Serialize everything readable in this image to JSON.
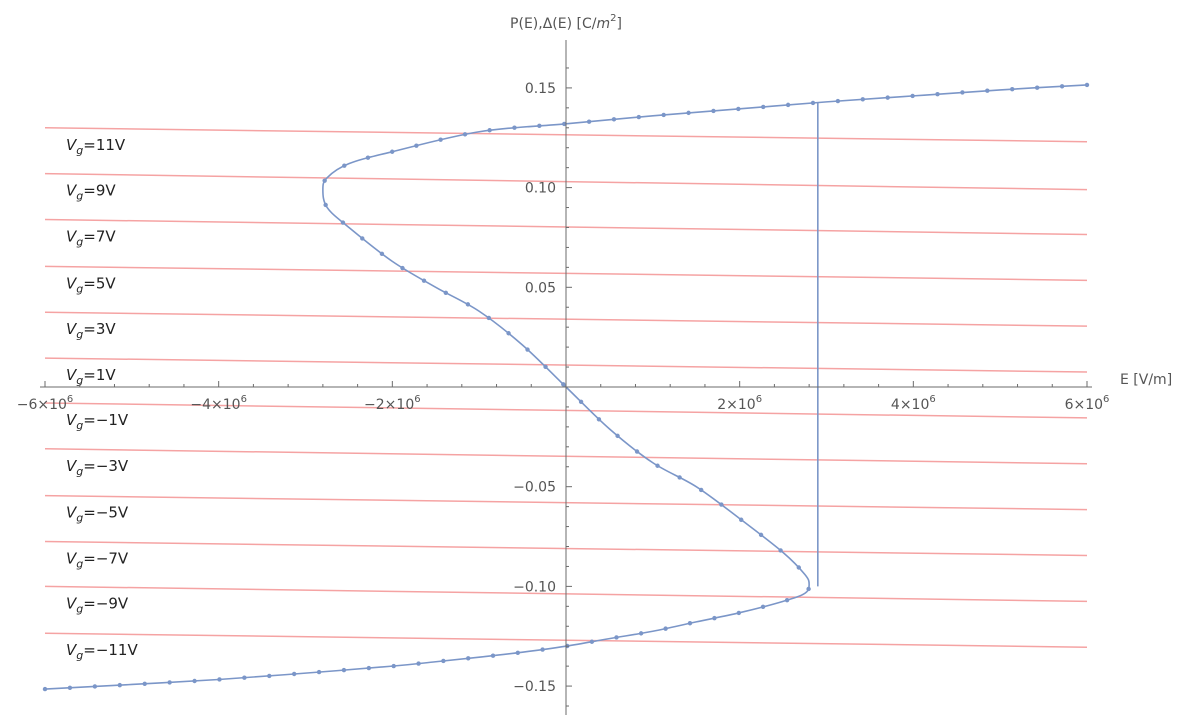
{
  "chart_data": {
    "type": "line",
    "title": "",
    "xlabel": "E [V/m]",
    "ylabel_parts": [
      "P(E),Δ(E) [C/",
      "m",
      "2",
      "]"
    ],
    "xlim": [
      -6000000,
      6000000
    ],
    "ylim": [
      -0.163,
      0.165
    ],
    "x_ticks": [
      {
        "value": -6000000,
        "mant": "−6×10",
        "exp": "6"
      },
      {
        "value": -4000000,
        "mant": "−4×10",
        "exp": "6"
      },
      {
        "value": -2000000,
        "mant": "−2×10",
        "exp": "6"
      },
      {
        "value": 2000000,
        "mant": "2×10",
        "exp": "6"
      },
      {
        "value": 4000000,
        "mant": "4×10",
        "exp": "6"
      },
      {
        "value": 6000000,
        "mant": "6×10",
        "exp": "6"
      }
    ],
    "y_ticks": [
      {
        "value": 0.15,
        "label": "0.15"
      },
      {
        "value": 0.1,
        "label": "0.10"
      },
      {
        "value": 0.05,
        "label": "0.05"
      },
      {
        "value": -0.05,
        "label": "−0.05"
      },
      {
        "value": -0.1,
        "label": "−0.10"
      },
      {
        "value": -0.15,
        "label": "−0.15"
      }
    ],
    "curve_color": "#7b96c8",
    "line_color": "#f5a3a3",
    "s_curve": {
      "x": [
        -6000000,
        -5000000,
        -4000000,
        -3000000,
        -2000000,
        -1500000,
        -1000000,
        -500000,
        0,
        500000,
        1000000,
        1500000,
        2000000,
        2500000,
        2750000,
        2800000,
        2750000,
        2500000,
        2000000,
        1500000,
        1000000,
        500000,
        0,
        -500000,
        -1000000,
        -1500000,
        -2000000,
        -2500000,
        -2750000,
        -2800000,
        -2750000,
        -2500000,
        -2000000,
        -1000000,
        0,
        1000000,
        2000000,
        3000000,
        4000000,
        5000000,
        6000000
      ],
      "y": [
        -0.1515,
        -0.1492,
        -0.1467,
        -0.1435,
        -0.14,
        -0.1378,
        -0.1355,
        -0.133,
        -0.13,
        -0.1262,
        -0.1225,
        -0.1178,
        -0.1132,
        -0.1075,
        -0.1035,
        -0.099,
        -0.094,
        -0.083,
        -0.066,
        -0.05,
        -0.038,
        -0.021,
        0.0,
        0.021,
        0.038,
        0.05,
        0.063,
        0.08,
        0.09,
        0.099,
        0.105,
        0.112,
        0.118,
        0.128,
        0.132,
        0.136,
        0.1395,
        0.143,
        0.146,
        0.149,
        0.1515
      ]
    },
    "vertical_segment": {
      "x": 2900000,
      "y": [
        -0.1,
        0.1425
      ]
    },
    "gate_lines": [
      {
        "label_pre": "V",
        "label_sub": "g",
        "label_post": "=11V",
        "y_left": 0.13,
        "y_right": 0.123
      },
      {
        "label_pre": "V",
        "label_sub": "g",
        "label_post": "=9V",
        "y_left": 0.107,
        "y_right": 0.099
      },
      {
        "label_pre": "V",
        "label_sub": "g",
        "label_post": "=7V",
        "y_left": 0.084,
        "y_right": 0.0765
      },
      {
        "label_pre": "V",
        "label_sub": "g",
        "label_post": "=5V",
        "y_left": 0.0605,
        "y_right": 0.0535
      },
      {
        "label_pre": "V",
        "label_sub": "g",
        "label_post": "=3V",
        "y_left": 0.0375,
        "y_right": 0.0305
      },
      {
        "label_pre": "V",
        "label_sub": "g",
        "label_post": "=1V",
        "y_left": 0.0145,
        "y_right": 0.0075
      },
      {
        "label_pre": "V",
        "label_sub": "g",
        "label_post": "=−1V",
        "y_left": -0.008,
        "y_right": -0.0155
      },
      {
        "label_pre": "V",
        "label_sub": "g",
        "label_post": "=−3V",
        "y_left": -0.031,
        "y_right": -0.0385
      },
      {
        "label_pre": "V",
        "label_sub": "g",
        "label_post": "=−5V",
        "y_left": -0.0545,
        "y_right": -0.0615
      },
      {
        "label_pre": "V",
        "label_sub": "g",
        "label_post": "=−7V",
        "y_left": -0.0775,
        "y_right": -0.0845
      },
      {
        "label_pre": "V",
        "label_sub": "g",
        "label_post": "=−9V",
        "y_left": -0.1,
        "y_right": -0.1075
      },
      {
        "label_pre": "V",
        "label_sub": "g",
        "label_post": "=−11V",
        "y_left": -0.1235,
        "y_right": -0.1305
      }
    ]
  }
}
